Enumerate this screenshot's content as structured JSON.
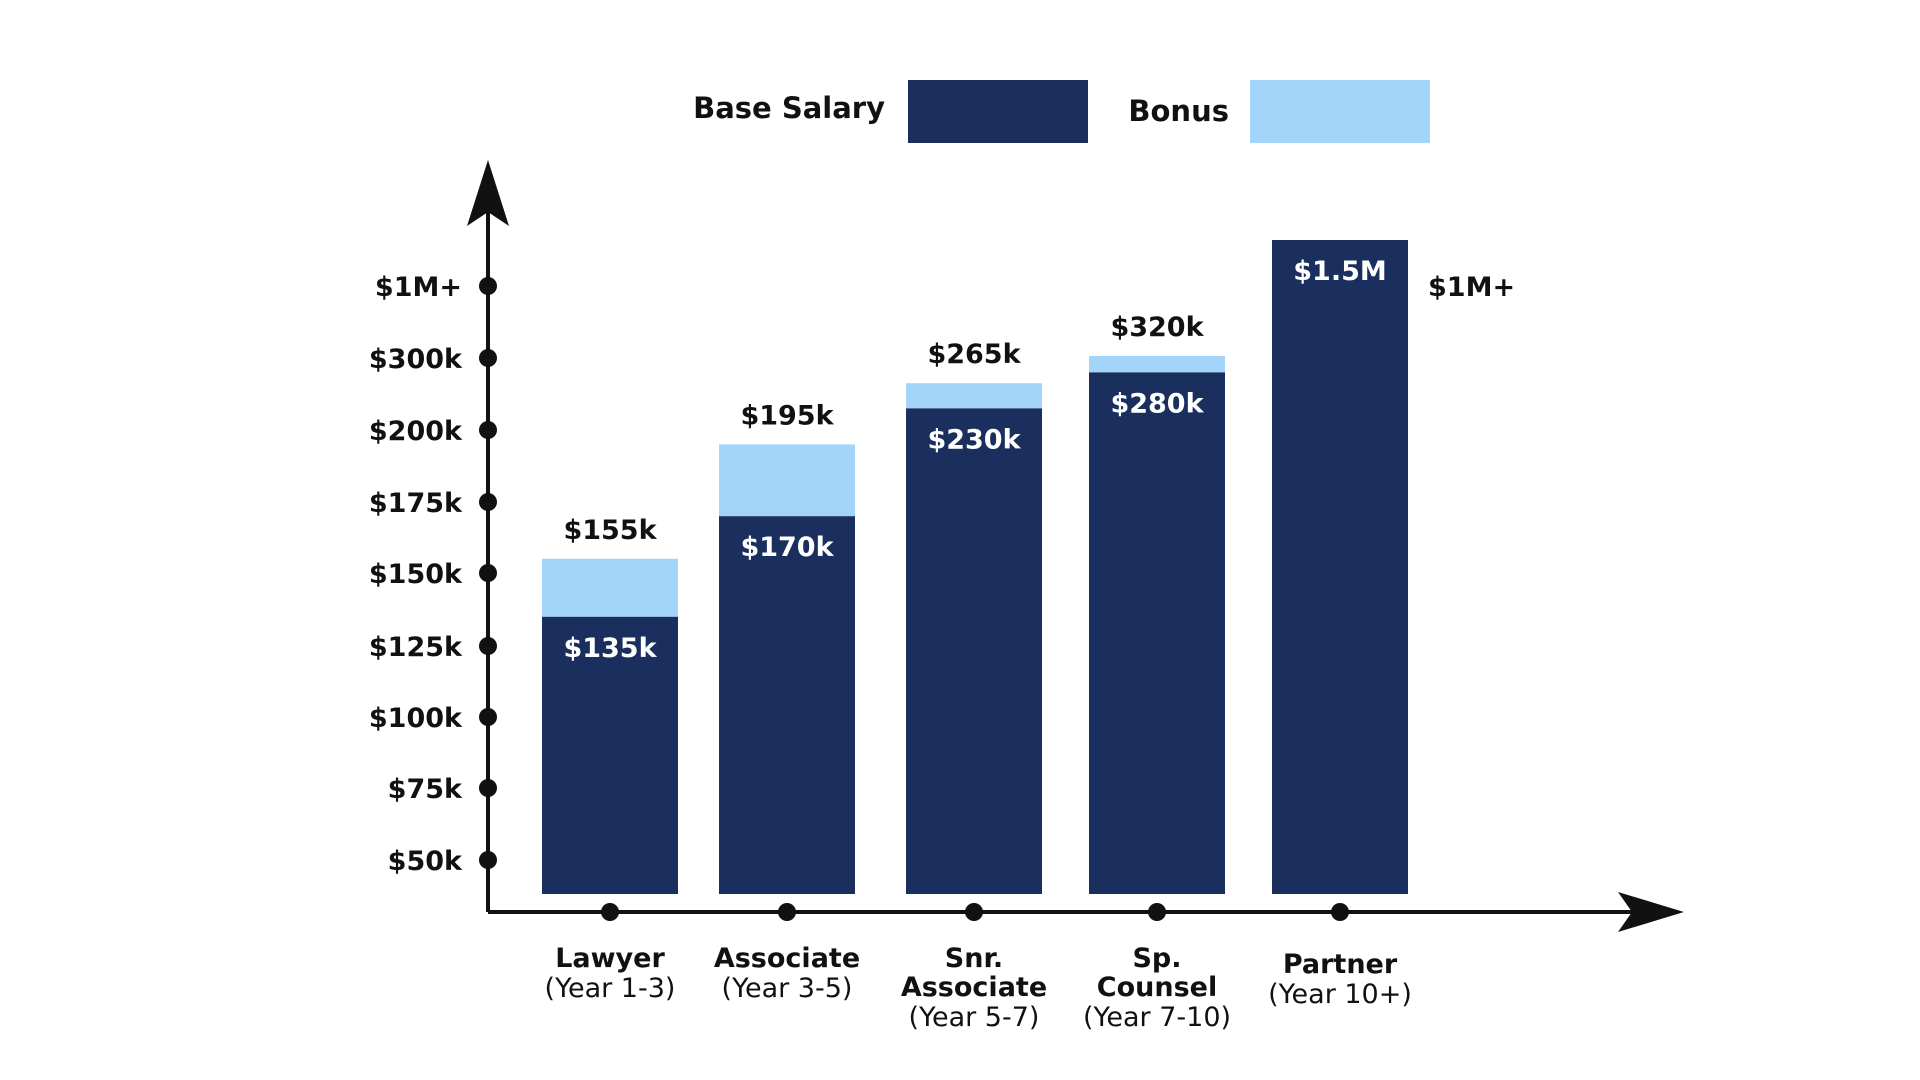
{
  "chart_data": {
    "type": "bar",
    "stacked": true,
    "legend": {
      "placement": "top",
      "items": [
        {
          "label": "Base Salary",
          "color": "#1a2f5e"
        },
        {
          "label": "Bonus",
          "color": "#a3d5fb"
        }
      ]
    },
    "y_tick_labels": [
      "$50k",
      "$75k",
      "$100k",
      "$125k",
      "$150k",
      "$175k",
      "$200k",
      "$300k",
      "$1M+"
    ],
    "categories": [
      {
        "title": "Lawyer",
        "subtitle": "(Year 1-3)"
      },
      {
        "title": "Associate",
        "subtitle": "(Year 3-5)"
      },
      {
        "title": "Snr. Associate",
        "subtitle": "(Year 5-7)"
      },
      {
        "title": "Sp. Counsel",
        "subtitle": "(Year 7-10)"
      },
      {
        "title": "Partner",
        "subtitle": "(Year 10+)"
      }
    ],
    "bars": [
      {
        "base": 135000,
        "total": 155000,
        "base_label": "$135k",
        "total_label": "$155k"
      },
      {
        "base": 170000,
        "total": 195000,
        "base_label": "$170k",
        "total_label": "$195k"
      },
      {
        "base": 230000,
        "total": 265000,
        "base_label": "$230k",
        "total_label": "$265k"
      },
      {
        "base": 280000,
        "total": 320000,
        "base_label": "$280k",
        "total_label": "$320k"
      },
      {
        "base": 1500000,
        "total": 1500000,
        "base_label": "$1.5M",
        "total_label": "",
        "side_label": "$1M+"
      }
    ],
    "grid": false,
    "y_scale": "piecewise (ticks unevenly spaced)"
  }
}
